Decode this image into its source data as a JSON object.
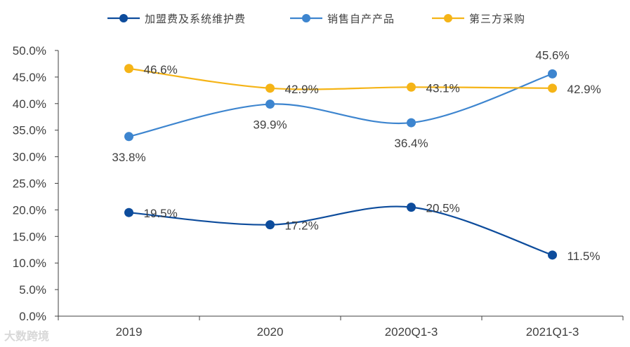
{
  "chart_data": {
    "type": "line",
    "title": "",
    "xlabel": "",
    "ylabel": "",
    "categories": [
      "2019",
      "2020",
      "2020Q1-3",
      "2021Q1-3"
    ],
    "ylim": [
      0,
      50
    ],
    "ytick_step": 5,
    "y_tick_labels": [
      "0.0%",
      "5.0%",
      "10.0%",
      "15.0%",
      "20.0%",
      "25.0%",
      "30.0%",
      "35.0%",
      "40.0%",
      "45.0%",
      "50.0%"
    ],
    "legend_position": "top",
    "series": [
      {
        "name": "加盟费及系统维护费",
        "color": "#0d4c9c",
        "values": [
          19.5,
          17.2,
          20.5,
          11.5
        ],
        "labels": [
          "19.5%",
          "17.2%",
          "20.5%",
          "11.5%"
        ],
        "label_positions": [
          "right",
          "right",
          "right",
          "right"
        ]
      },
      {
        "name": "销售自产产品",
        "color": "#3d85cf",
        "values": [
          33.8,
          39.9,
          36.4,
          45.6
        ],
        "labels": [
          "33.8%",
          "39.9%",
          "36.4%",
          "45.6%"
        ],
        "label_positions": [
          "below",
          "below",
          "below",
          "above"
        ]
      },
      {
        "name": "第三方采购",
        "color": "#f5b417",
        "values": [
          46.6,
          42.9,
          43.1,
          42.9
        ],
        "labels": [
          "46.6%",
          "42.9%",
          "43.1%",
          "42.9%"
        ],
        "label_positions": [
          "right",
          "right",
          "right",
          "right"
        ]
      }
    ]
  },
  "watermark": "大数跨境"
}
